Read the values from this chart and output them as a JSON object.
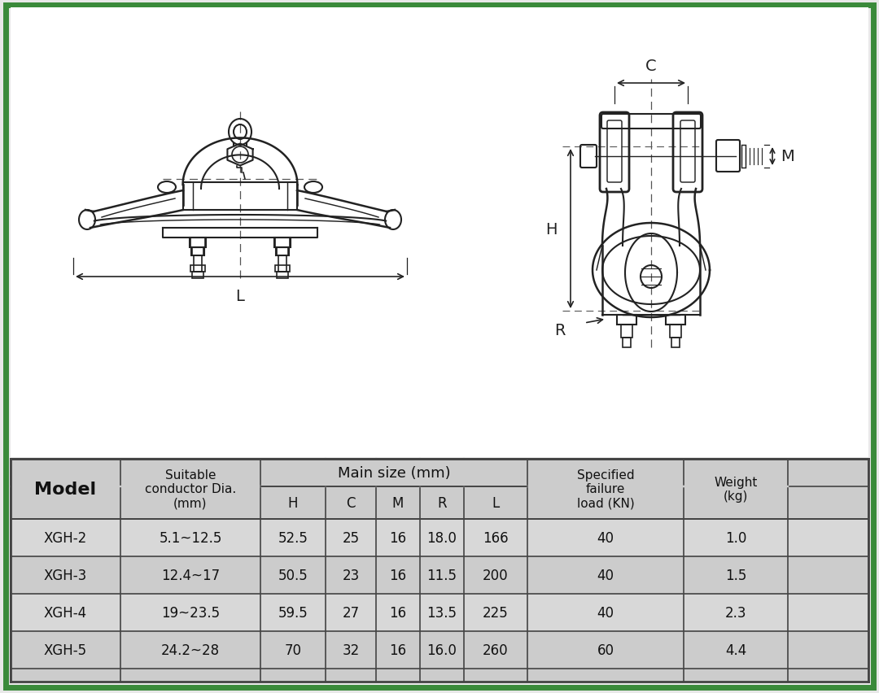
{
  "bg_color": "#e8e8e8",
  "border_color": "#3a8a3a",
  "border_linewidth": 5,
  "drawing_bg": "#ffffff",
  "table_bg": "#d0d0d0",
  "table_border_color": "#444444",
  "main_size_header": "Main size (mm)",
  "rows": [
    [
      "XGH-2",
      "5.1~12.5",
      "52.5",
      "25",
      "16",
      "18.0",
      "166",
      "40",
      "1.0"
    ],
    [
      "XGH-3",
      "12.4~17",
      "50.5",
      "23",
      "16",
      "11.5",
      "200",
      "40",
      "1.5"
    ],
    [
      "XGH-4",
      "19~23.5",
      "59.5",
      "27",
      "16",
      "13.5",
      "225",
      "40",
      "2.3"
    ],
    [
      "XGH-5",
      "24.2~28",
      "70",
      "32",
      "16",
      "16.0",
      "260",
      "60",
      "4.4"
    ]
  ],
  "line_color": "#222222",
  "line_color2": "#555555",
  "draw_lw": 1.5
}
